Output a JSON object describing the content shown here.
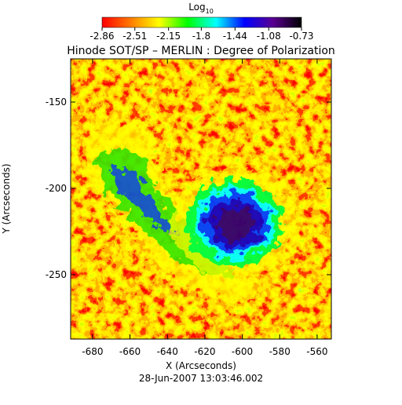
{
  "chart_data": {
    "type": "heatmap",
    "title": "Hinode SOT/SP – MERLIN : Degree of Polarization",
    "xlabel": "X (Arcseconds)",
    "ylabel": "Y (Arcseconds)",
    "footer": "28-Jun-2007 13:03:46.002",
    "xlim": [
      -691.7,
      -552.4
    ],
    "xticks": [
      -680,
      -660,
      -640,
      -620,
      -600,
      -580,
      -560
    ],
    "ylim": [
      -287.3,
      -125
    ],
    "yticks": [
      -150,
      -200,
      -250
    ],
    "colorbar": {
      "label": "Log",
      "label_sub": "10",
      "lim": [
        -2.86,
        -0.73
      ],
      "ticks": [
        -2.86,
        -2.51,
        -2.15,
        -1.8,
        -1.44,
        -1.08,
        -0.73
      ],
      "colormap": [
        "#ff0000",
        "#ff7a00",
        "#ffff00",
        "#00ff00",
        "#00ffff",
        "#0000ff",
        "#5a0090",
        "#000000"
      ]
    }
  }
}
